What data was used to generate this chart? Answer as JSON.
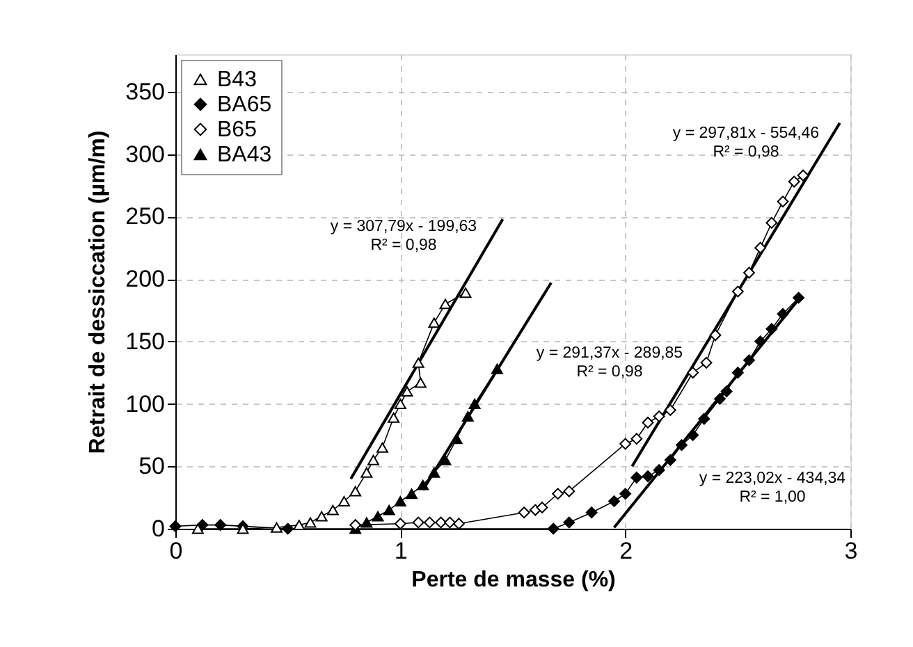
{
  "chart_data": {
    "type": "line",
    "xlabel": "Perte de masse (%)",
    "ylabel": "Retrait de dessiccation (µm/m)",
    "xlim": [
      0,
      3
    ],
    "xticks": [
      0,
      1,
      2,
      3
    ],
    "ylim": [
      0,
      380
    ],
    "yticks": [
      0,
      50,
      100,
      150,
      200,
      250,
      300,
      350
    ],
    "grid": true,
    "legend": "top left",
    "line_style": "solid",
    "series": [
      {
        "name": "B43",
        "color": "#ffffff",
        "marker": "triangle",
        "x": [
          0.1,
          0.3,
          0.45,
          0.55,
          0.6,
          0.65,
          0.7,
          0.75,
          0.8,
          0.85,
          0.88,
          0.92,
          0.97,
          1.0,
          1.03,
          1.09,
          1.08,
          1.15,
          1.2,
          1.29
        ],
        "values": [
          0,
          0,
          1,
          3,
          5,
          10,
          15,
          22,
          30,
          45,
          55,
          65,
          89,
          100,
          110,
          117,
          133,
          165,
          180,
          189
        ]
      },
      {
        "name": "BA65",
        "color": "#000000",
        "marker": "diamond",
        "x": [
          0,
          0.12,
          0.2,
          0.3,
          0.5,
          1.68,
          1.75,
          1.85,
          1.95,
          2.0,
          2.05,
          2.1,
          2.15,
          2.2,
          2.25,
          2.3,
          2.35,
          2.42,
          2.45,
          2.5,
          2.55,
          2.6,
          2.65,
          2.7,
          2.77
        ],
        "values": [
          2,
          3,
          3,
          2,
          0,
          0,
          5,
          13,
          22,
          28,
          41,
          42,
          47,
          55,
          67,
          75,
          88,
          104,
          110,
          125,
          135,
          150,
          160,
          172,
          185
        ]
      },
      {
        "name": "B65",
        "color": "#ffffff",
        "marker": "diamond",
        "x": [
          0.8,
          1.0,
          1.08,
          1.13,
          1.18,
          1.22,
          1.26,
          1.55,
          1.6,
          1.63,
          1.7,
          1.75,
          2.0,
          2.05,
          2.1,
          2.15,
          2.2,
          2.3,
          2.36,
          2.4,
          2.5,
          2.55,
          2.6,
          2.65,
          2.7,
          2.75,
          2.79
        ],
        "values": [
          3,
          4,
          5,
          5,
          5,
          5,
          4,
          13,
          15,
          17,
          28,
          30,
          68,
          72,
          85,
          90,
          95,
          125,
          133,
          155,
          190,
          205,
          225,
          245,
          262,
          278,
          283
        ]
      },
      {
        "name": "BA43",
        "color": "#000000",
        "marker": "triangle",
        "x": [
          0.8,
          0.85,
          0.9,
          0.95,
          1.0,
          1.05,
          1.1,
          1.15,
          1.2,
          1.25,
          1.3,
          1.33,
          1.43
        ],
        "values": [
          0,
          5,
          10,
          15,
          22,
          28,
          35,
          45,
          55,
          72,
          90,
          100,
          128
        ]
      },
      {
        "marker": "none",
        "color": "#000000",
        "x": [
          0.78,
          1.455
        ],
        "values": [
          40,
          248
        ]
      },
      {
        "marker": "none",
        "color": "#000000",
        "x": [
          1.1,
          1.67
        ],
        "values": [
          31,
          197
        ]
      },
      {
        "marker": "none",
        "color": "#000000",
        "x": [
          2.03,
          2.953
        ],
        "values": [
          50,
          325
        ]
      },
      {
        "marker": "none",
        "color": "#000000",
        "x": [
          1.95,
          2.78
        ],
        "values": [
          1,
          186
        ]
      }
    ],
    "annotations": [
      "y = 307,79x - 199,63\nR² = 0,98",
      "y = 291,37x - 289,85\nR² = 0,98",
      "y = 297,81x - 554,46\nR² = 0,98",
      "y = 223,02x - 434,34\nR² = 1,00"
    ]
  }
}
